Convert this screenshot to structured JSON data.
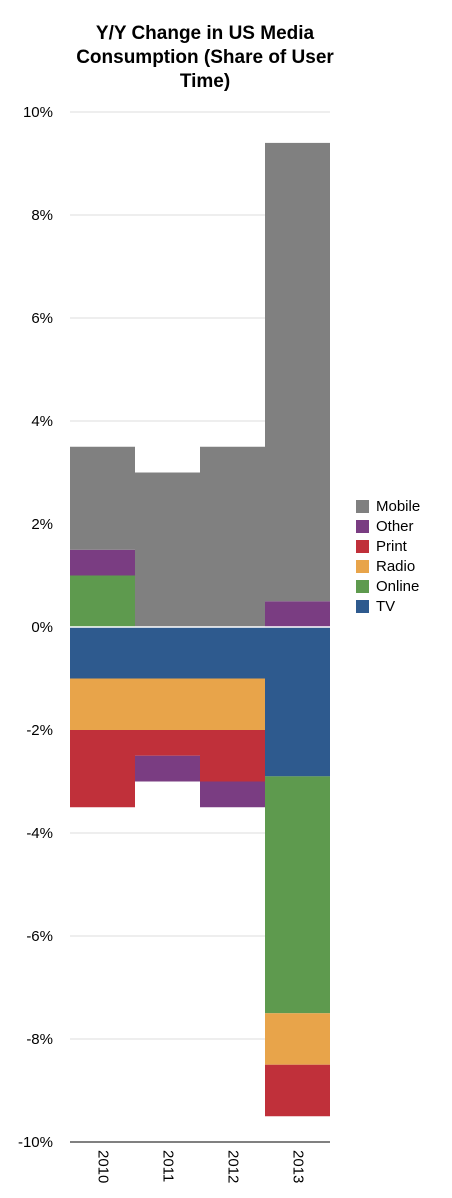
{
  "chart_data": {
    "type": "bar",
    "stacked": true,
    "title": "Y/Y Change in US Media Consumption (Share of User Time)",
    "categories": [
      "2010",
      "2011",
      "2012",
      "2013"
    ],
    "y_ticks": [
      "10%",
      "8%",
      "6%",
      "4%",
      "2%",
      "0%",
      "-2%",
      "-4%",
      "-6%",
      "-8%",
      "-10%"
    ],
    "ylim": [
      -10,
      10
    ],
    "grid": true,
    "legend_position": "right",
    "series": [
      {
        "name": "TV",
        "color": "#2e5a8e",
        "values": [
          -1.0,
          -1.0,
          -1.0,
          -2.9
        ]
      },
      {
        "name": "Online",
        "color": "#5e9a4e",
        "values": [
          1.0,
          0.0,
          0.0,
          -4.6
        ]
      },
      {
        "name": "Radio",
        "color": "#e8a44a",
        "values": [
          -1.0,
          -1.0,
          -1.0,
          -1.0
        ]
      },
      {
        "name": "Print",
        "color": "#c0303a",
        "values": [
          -1.5,
          -0.5,
          -1.0,
          -1.0
        ]
      },
      {
        "name": "Other",
        "color": "#7a3d82",
        "values": [
          0.5,
          -0.5,
          -0.5,
          0.5
        ]
      },
      {
        "name": "Mobile",
        "color": "#808080",
        "values": [
          2.0,
          3.0,
          3.5,
          8.9
        ]
      }
    ]
  }
}
